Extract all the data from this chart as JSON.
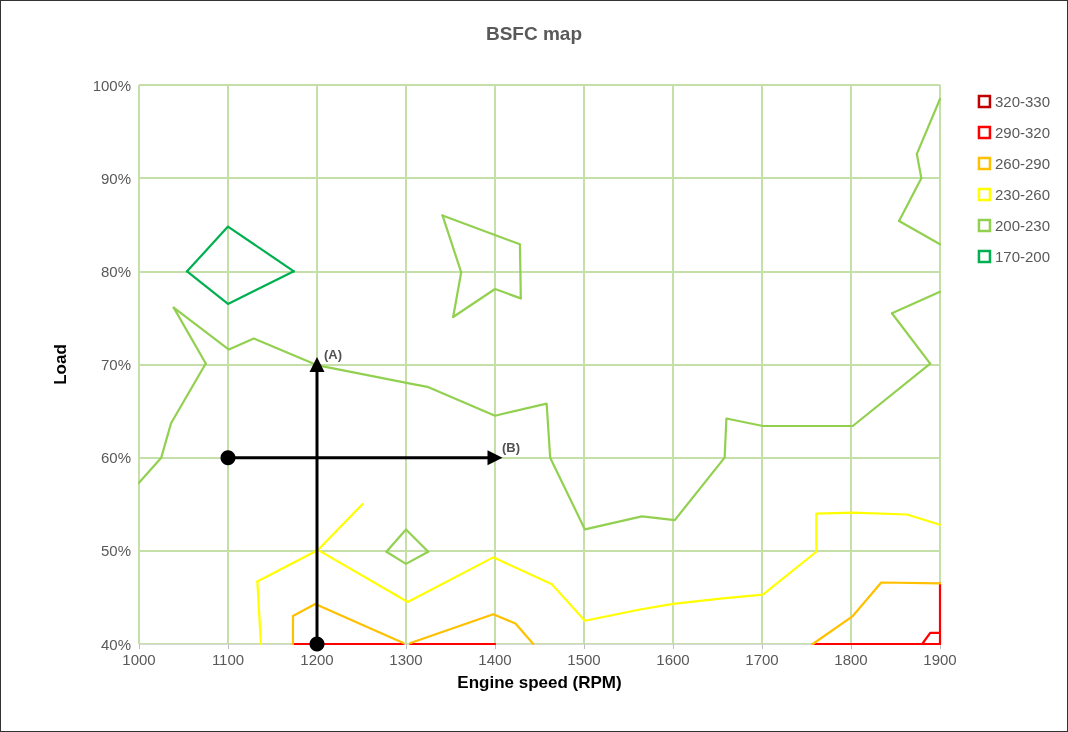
{
  "chart_data": {
    "type": "line",
    "title": "BSFC map",
    "xlabel": "Engine speed (RPM)",
    "ylabel": "Load",
    "xlim": [
      1000,
      1900
    ],
    "xticks": [
      1000,
      1100,
      1200,
      1300,
      1400,
      1500,
      1600,
      1700,
      1800,
      1900
    ],
    "ylim": [
      40,
      100
    ],
    "yticks": [
      {
        "value": 40,
        "label": "40%"
      },
      {
        "value": 50,
        "label": "50%"
      },
      {
        "value": 60,
        "label": "60%"
      },
      {
        "value": 70,
        "label": "70%"
      },
      {
        "value": 80,
        "label": "80%"
      },
      {
        "value": 90,
        "label": "90%"
      },
      {
        "value": 100,
        "label": "100%"
      }
    ],
    "grid": true,
    "legend": "right",
    "marker": "none",
    "line_style": "solid",
    "series": [
      {
        "name": "320-330",
        "color": "#c00000"
      },
      {
        "name": "290-320",
        "color": "#ff0000",
        "x": [
          1173,
          1297,
          null,
          1305,
          1400,
          null,
          1757,
          1900,
          1900,
          null,
          1880,
          1889,
          1900
        ],
        "values": [
          40,
          40,
          null,
          40,
          40,
          null,
          40,
          40,
          46.5,
          null,
          40,
          41.2,
          41.2
        ]
      },
      {
        "name": "260-290",
        "color": "#ffc000",
        "x": [
          1173,
          1173,
          1198,
          1297,
          null,
          1305,
          1398,
          1423,
          1443,
          null,
          1757,
          1802,
          1834,
          1900
        ],
        "values": [
          40,
          43.0,
          44.3,
          40.1,
          null,
          40.1,
          43.2,
          42.2,
          40,
          null,
          40,
          43.0,
          46.6,
          46.5
        ]
      },
      {
        "name": "230-260",
        "color": "#ffff00",
        "x": [
          1133,
          1137
        ],
        "values": [
          46.7,
          40
        ]
      },
      {
        "color": "#ffff00",
        "x": [
          1133,
          1201,
          1251
        ],
        "values": [
          46.7,
          50.1,
          55.0
        ]
      },
      {
        "color": "#ffff00",
        "x": [
          1201,
          1302,
          1398,
          1464,
          1501,
          1563,
          1600,
          1656,
          1701,
          1761,
          1761,
          1802,
          1863,
          1900
        ],
        "values": [
          50.1,
          44.5,
          49.3,
          46.4,
          42.5,
          43.7,
          44.3,
          44.9,
          45.3,
          49.9,
          54.0,
          54.1,
          53.9,
          52.8
        ]
      },
      {
        "name": "200-230",
        "color": "#92d050",
        "x": [
          1000,
          1025,
          1036,
          1075
        ],
        "values": [
          57.3,
          60,
          63.7,
          70.1
        ]
      },
      {
        "color": "#92d050",
        "x": [
          1039,
          1075
        ],
        "values": [
          76.1,
          70.1
        ]
      },
      {
        "color": "#92d050",
        "x": [
          1039,
          1101,
          1129,
          1201,
          1302,
          1324,
          1400,
          1458,
          1462,
          1501,
          1565,
          1602,
          1658,
          1660,
          1701,
          1802,
          1889
        ],
        "values": [
          76.1,
          71.6,
          72.8,
          69.9,
          68.0,
          67.6,
          64.5,
          65.8,
          60,
          52.3,
          53.7,
          53.3,
          60,
          64.2,
          63.4,
          63.4,
          70.1
        ]
      },
      {
        "color": "#92d050",
        "x": [
          1846,
          1889
        ],
        "values": [
          75.5,
          70.1
        ]
      },
      {
        "color": "#92d050",
        "x": [
          1846,
          1900
        ],
        "values": [
          75.5,
          77.8
        ]
      },
      {
        "color": "#92d050",
        "x": [
          1854,
          1900
        ],
        "values": [
          85.4,
          82.9
        ]
      },
      {
        "color": "#92d050",
        "x": [
          1854,
          1879
        ],
        "values": [
          85.4,
          90.0
        ]
      },
      {
        "color": "#92d050",
        "x": [
          1874,
          1879
        ],
        "values": [
          92.6,
          90.0
        ]
      },
      {
        "color": "#92d050",
        "x": [
          1874,
          1900
        ],
        "values": [
          92.6,
          98.5
        ]
      },
      {
        "color": "#92d050",
        "x": [
          1341,
          1428,
          1429
        ],
        "values": [
          86.0,
          82.9,
          77.1
        ]
      },
      {
        "color": "#92d050",
        "x": [
          1353,
          1400,
          1429
        ],
        "values": [
          75.1,
          78.1,
          77.1
        ]
      },
      {
        "color": "#92d050",
        "x": [
          1353,
          1362
        ],
        "values": [
          75.1,
          79.9
        ]
      },
      {
        "color": "#92d050",
        "x": [
          1341,
          1362
        ],
        "values": [
          86.0,
          79.9
        ]
      },
      {
        "color": "#92d050",
        "x": [
          1278,
          1300,
          1325
        ],
        "values": [
          49.9,
          52.3,
          49.9
        ]
      },
      {
        "color": "#92d050",
        "x": [
          1278,
          1300,
          1325
        ],
        "values": [
          49.9,
          48.6,
          49.9
        ]
      },
      {
        "name": "170-200",
        "color": "#00b050",
        "x": [
          1054,
          1100,
          1174
        ],
        "values": [
          80,
          84.8,
          80
        ]
      },
      {
        "color": "#00b050",
        "x": [
          1054,
          1100,
          1174
        ],
        "values": [
          80,
          76.5,
          80
        ]
      },
      {
        "color": "#000000",
        "marker": "circle",
        "x": [
          1200,
          1200
        ],
        "values": [
          40,
          70
        ]
      },
      {
        "color": "#000000",
        "marker": "circle",
        "x": [
          1100,
          1400
        ],
        "values": [
          60,
          60
        ]
      }
    ],
    "annotations": [
      {
        "text": "(A)",
        "x": 1200,
        "y": 70
      },
      {
        "text": "(B)",
        "x": 1400,
        "y": 60
      }
    ]
  }
}
